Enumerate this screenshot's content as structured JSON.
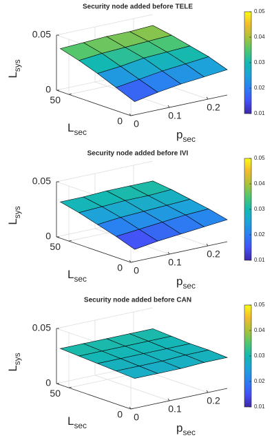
{
  "chart_data": [
    {
      "type": "surface",
      "title": "Security node added before TELE",
      "xlabel": {
        "text": "p",
        "sub": "sec"
      },
      "ylabel": {
        "text": "L",
        "sub": "sec"
      },
      "zlabel": {
        "text": "L",
        "sub": "sys"
      },
      "x": [
        0.01,
        0.07,
        0.13,
        0.19,
        0.25
      ],
      "y": [
        0,
        15,
        30,
        45,
        60
      ],
      "z": [
        [
          0.012,
          0.016,
          0.019,
          0.021,
          0.023
        ],
        [
          0.019,
          0.022,
          0.025,
          0.027,
          0.029
        ],
        [
          0.026,
          0.028,
          0.031,
          0.032,
          0.033
        ],
        [
          0.032,
          0.034,
          0.035,
          0.036,
          0.037
        ],
        [
          0.037,
          0.038,
          0.039,
          0.039,
          0.04
        ]
      ],
      "xlim": [
        0,
        0.25
      ],
      "ylim": [
        0,
        60
      ],
      "zlim": [
        0,
        0.05
      ],
      "xticks": [
        0,
        0.1,
        0.2
      ],
      "yticks": [
        0,
        50
      ],
      "zticks": [
        0,
        0.05
      ],
      "clim": [
        0.01,
        0.05
      ],
      "cticks": [
        0.01,
        0.02,
        0.03,
        0.04,
        0.05
      ],
      "colormap": [
        "#3e26a8",
        "#4352f5",
        "#2b7ef3",
        "#1ea2da",
        "#14b8b2",
        "#50c66f",
        "#acc238",
        "#f2bb30",
        "#f9fb15"
      ],
      "grid": true
    },
    {
      "type": "surface",
      "title": "Security node added before IVI",
      "xlabel": {
        "text": "p",
        "sub": "sec"
      },
      "ylabel": {
        "text": "L",
        "sub": "sec"
      },
      "zlabel": {
        "text": "L",
        "sub": "sys"
      },
      "x": [
        0.01,
        0.07,
        0.13,
        0.19,
        0.25
      ],
      "y": [
        0,
        15,
        30,
        45,
        60
      ],
      "z": [
        [
          0.011,
          0.014,
          0.016,
          0.018,
          0.02
        ],
        [
          0.017,
          0.019,
          0.021,
          0.023,
          0.024
        ],
        [
          0.022,
          0.024,
          0.025,
          0.026,
          0.027
        ],
        [
          0.027,
          0.028,
          0.029,
          0.029,
          0.03
        ],
        [
          0.031,
          0.031,
          0.032,
          0.032,
          0.032
        ]
      ],
      "xlim": [
        0,
        0.25
      ],
      "ylim": [
        0,
        60
      ],
      "zlim": [
        0,
        0.05
      ],
      "xticks": [
        0,
        0.1,
        0.2
      ],
      "yticks": [
        0,
        50
      ],
      "zticks": [
        0,
        0.05
      ],
      "clim": [
        0.01,
        0.05
      ],
      "cticks": [
        0.01,
        0.02,
        0.03,
        0.04,
        0.05
      ],
      "colormap": [
        "#3e26a8",
        "#4352f5",
        "#2b7ef3",
        "#1ea2da",
        "#14b8b2",
        "#50c66f",
        "#acc238",
        "#f2bb30",
        "#f9fb15"
      ],
      "grid": true
    },
    {
      "type": "surface",
      "title": "Security node added before CAN",
      "xlabel": {
        "text": "p",
        "sub": "sec"
      },
      "ylabel": {
        "text": "L",
        "sub": "sec"
      },
      "zlabel": {
        "text": "L",
        "sub": "sys"
      },
      "x": [
        0.01,
        0.07,
        0.13,
        0.19,
        0.25
      ],
      "y": [
        0,
        15,
        30,
        45,
        60
      ],
      "z": [
        [
          0.027,
          0.027,
          0.027,
          0.028,
          0.028
        ],
        [
          0.028,
          0.028,
          0.028,
          0.029,
          0.029
        ],
        [
          0.029,
          0.029,
          0.029,
          0.029,
          0.029
        ],
        [
          0.03,
          0.03,
          0.03,
          0.03,
          0.03
        ],
        [
          0.031,
          0.031,
          0.031,
          0.031,
          0.031
        ]
      ],
      "xlim": [
        0,
        0.25
      ],
      "ylim": [
        0,
        60
      ],
      "zlim": [
        0,
        0.05
      ],
      "xticks": [
        0,
        0.1,
        0.2
      ],
      "yticks": [
        0,
        50
      ],
      "zticks": [
        0,
        0.05
      ],
      "clim": [
        0.01,
        0.05
      ],
      "cticks": [
        0.01,
        0.02,
        0.03,
        0.04,
        0.05
      ],
      "colormap": [
        "#3e26a8",
        "#4352f5",
        "#2b7ef3",
        "#1ea2da",
        "#14b8b2",
        "#50c66f",
        "#acc238",
        "#f2bb30",
        "#f9fb15"
      ],
      "grid": true
    }
  ]
}
